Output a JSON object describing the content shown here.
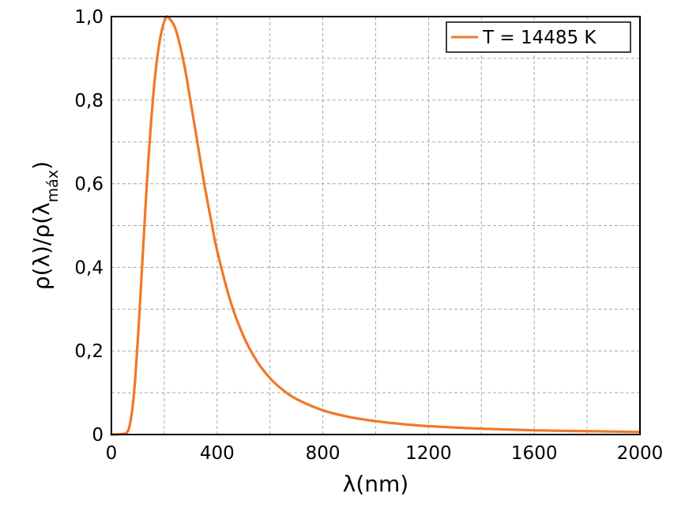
{
  "chart_data": {
    "type": "line",
    "xlabel": "λ(nm)",
    "ylabel": {
      "main": "ρ(λ)/ρ(λ",
      "subscript": "máx",
      "close": ")"
    },
    "xlim": [
      0,
      2000
    ],
    "ylim": [
      0,
      1.0
    ],
    "x_ticks": [
      0,
      400,
      800,
      1200,
      1600,
      2000
    ],
    "x_tick_labels": [
      "0",
      "400",
      "800",
      "1200",
      "1600",
      "2000"
    ],
    "y_ticks": [
      0,
      0.2,
      0.4,
      0.6,
      0.8,
      1.0
    ],
    "y_tick_labels": [
      "0",
      "0,2",
      "0,4",
      "0,6",
      "0,8",
      "1,0"
    ],
    "grid": true,
    "legend_position": "top-right",
    "series": [
      {
        "name": "T = 14485 K",
        "color": "#f07828",
        "x": [
          0,
          40,
          60,
          70,
          80,
          90,
          100,
          110,
          120,
          130,
          140,
          150,
          160,
          170,
          180,
          190,
          200,
          210,
          220,
          240,
          260,
          280,
          300,
          320,
          350,
          380,
          400,
          450,
          500,
          550,
          600,
          650,
          700,
          800,
          900,
          1000,
          1100,
          1200,
          1400,
          1600,
          1800,
          2000
        ],
        "y": [
          0,
          0.001,
          0.006,
          0.024,
          0.065,
          0.133,
          0.226,
          0.333,
          0.445,
          0.556,
          0.658,
          0.747,
          0.823,
          0.884,
          0.931,
          0.965,
          0.988,
          1.0,
          0.995,
          0.975,
          0.93,
          0.87,
          0.795,
          0.72,
          0.605,
          0.503,
          0.44,
          0.32,
          0.235,
          0.176,
          0.135,
          0.106,
          0.085,
          0.058,
          0.042,
          0.032,
          0.025,
          0.02,
          0.014,
          0.01,
          0.008,
          0.006
        ]
      }
    ]
  }
}
